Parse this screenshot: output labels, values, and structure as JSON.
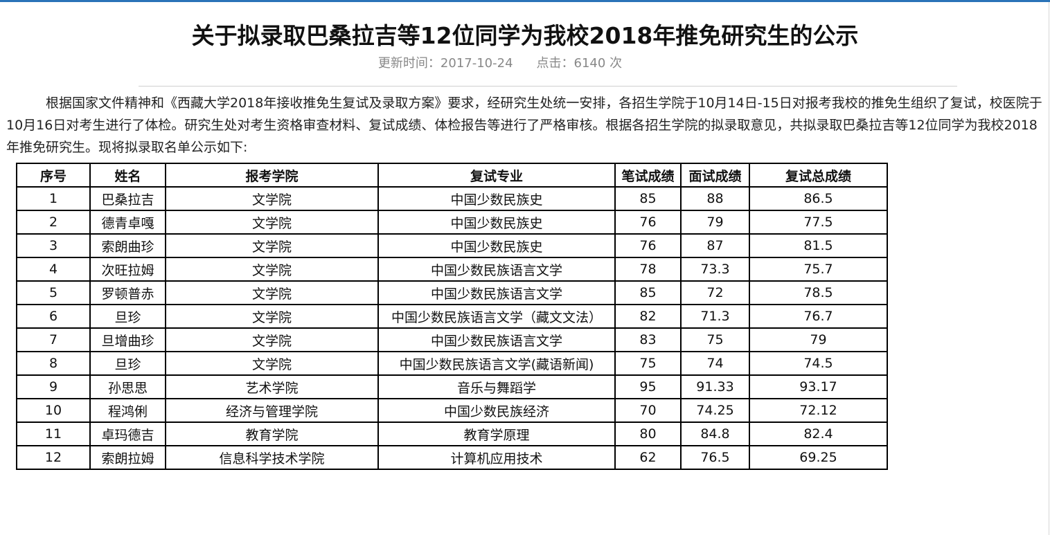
{
  "article": {
    "title": "关于拟录取巴桑拉吉等12位同学为我校2018年推免研究生的公示",
    "meta": {
      "update_label": "更新时间：",
      "update_value": "2017-10-24",
      "clicks_label": "点击：",
      "clicks_value": "6140",
      "clicks_unit": "次"
    },
    "body": "根据国家文件精神和《西藏大学2018年接收推免生复试及录取方案》要求，经研究生处统一安排，各招生学院于10月14日-15日对报考我校的推免生组织了复试，校医院于10月16日对考生进行了体检。研究生处对考生资格审查材料、复试成绩、体检报告等进行了严格审核。根据各招生学院的拟录取意见，共拟录取巴桑拉吉等12位同学为我校2018年推免研究生。现将拟录取名单公示如下:"
  },
  "table": {
    "headers": [
      "序号",
      "姓名",
      "报考学院",
      "复试专业",
      "笔试成绩",
      "面试成绩",
      "复试总成绩"
    ],
    "rows": [
      [
        "1",
        "巴桑拉吉",
        "文学院",
        "中国少数民族史",
        "85",
        "88",
        "86.5"
      ],
      [
        "2",
        "德青卓嘎",
        "文学院",
        "中国少数民族史",
        "76",
        "79",
        "77.5"
      ],
      [
        "3",
        "索朗曲珍",
        "文学院",
        "中国少数民族史",
        "76",
        "87",
        "81.5"
      ],
      [
        "4",
        "次旺拉姆",
        "文学院",
        "中国少数民族语言文学",
        "78",
        "73.3",
        "75.7"
      ],
      [
        "5",
        "罗顿普赤",
        "文学院",
        "中国少数民族语言文学",
        "85",
        "72",
        "78.5"
      ],
      [
        "6",
        "旦珍",
        "文学院",
        "中国少数民族语言文学（藏文文法）",
        "82",
        "71.3",
        "76.7"
      ],
      [
        "7",
        "旦增曲珍",
        "文学院",
        "中国少数民族语言文学",
        "83",
        "75",
        "79"
      ],
      [
        "8",
        "旦珍",
        "文学院",
        "中国少数民族语言文学(藏语新闻)",
        "75",
        "74",
        "74.5"
      ],
      [
        "9",
        "孙思思",
        "艺术学院",
        "音乐与舞蹈学",
        "95",
        "91.33",
        "93.17"
      ],
      [
        "10",
        "程鸿俐",
        "经济与管理学院",
        "中国少数民族经济",
        "70",
        "74.25",
        "72.12"
      ],
      [
        "11",
        "卓玛德吉",
        "教育学院",
        "教育学原理",
        "80",
        "84.8",
        "82.4"
      ],
      [
        "12",
        "索朗拉姆",
        "信息科学技术学院",
        "计算机应用技术",
        "62",
        "76.5",
        "69.25"
      ]
    ]
  },
  "colors": {
    "top_bar": "#2a73b8",
    "meta_text": "#888888",
    "border": "#000000"
  }
}
